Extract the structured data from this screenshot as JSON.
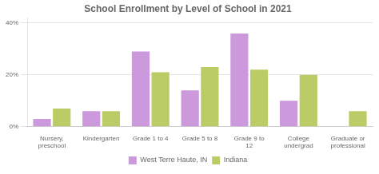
{
  "chart_data": {
    "type": "bar",
    "title": "School Enrollment by Level of School in 2021",
    "categories": [
      "Nursery,\npreschool",
      "Kindergarten",
      "Grade 1 to 4",
      "Grade 5 to 8",
      "Grade 9 to\n12",
      "College\nundergrad",
      "Graduate or\nprofessional"
    ],
    "series": [
      {
        "name": "West Terre Haute, IN",
        "color": "#cc99dd",
        "values": [
          3,
          6,
          29,
          14,
          36,
          10,
          0
        ]
      },
      {
        "name": "Indiana",
        "color": "#bbcc66",
        "values": [
          7,
          6,
          21,
          23,
          22,
          20,
          6
        ]
      }
    ],
    "ylim": [
      0,
      42
    ],
    "yticks": [
      {
        "value": 0,
        "label": "0%"
      },
      {
        "value": 20,
        "label": "20%"
      },
      {
        "value": 40,
        "label": "40%"
      }
    ],
    "grid": true,
    "legend": "bottom"
  }
}
